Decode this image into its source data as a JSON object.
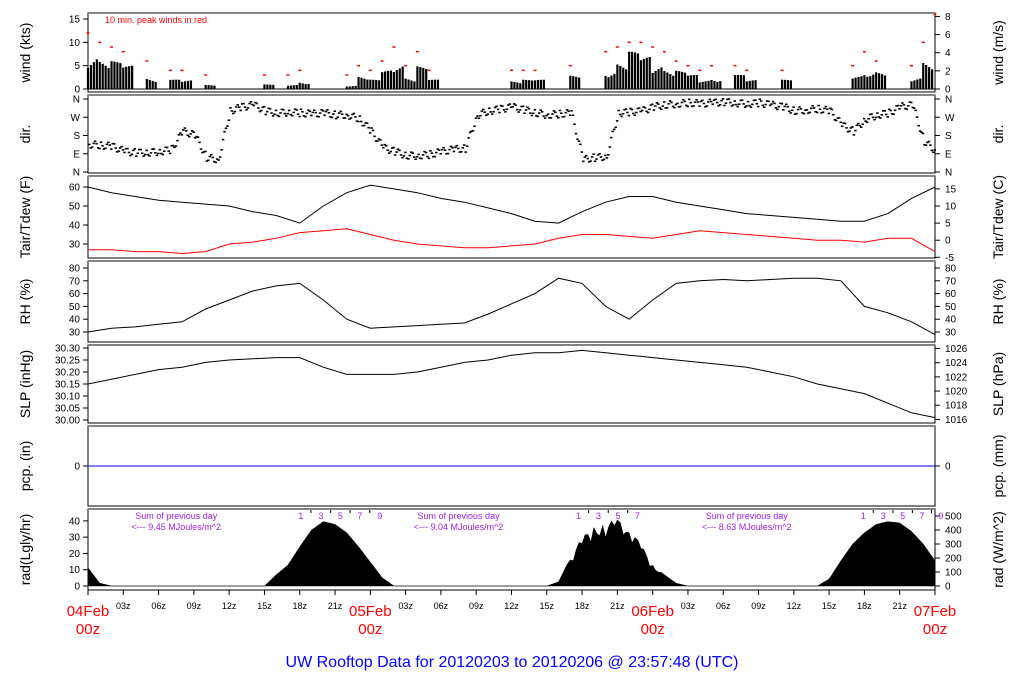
{
  "title": "UW Rooftop Data for 20120203  to  20120206 @ 23:57:48  (UTC)",
  "colors": {
    "axis": "#000000",
    "dew": "#ff0000",
    "peak": "#ff0000",
    "pcp": "#0000ff",
    "annot": "#a020f0",
    "title": "#0000ff",
    "date": "#ff0000"
  },
  "chart_data": [
    {
      "type": "bar",
      "id": "wind",
      "ylabel": "wind (kts)",
      "ylabel_right": "wind (m/s)",
      "annotation": "10 min. peak winds in red",
      "ylim": [
        0,
        15
      ],
      "yticks": [
        0,
        5,
        10,
        15
      ],
      "yticks_right": [
        0,
        2,
        4,
        6,
        8
      ],
      "x_hours_step": 1,
      "values": [
        9,
        7,
        6,
        5,
        0,
        3,
        0,
        2,
        2,
        0,
        1,
        0,
        0,
        0,
        0,
        1,
        0,
        1,
        2,
        0,
        0,
        0,
        1,
        3,
        2,
        4,
        6,
        3,
        5,
        2,
        0,
        0,
        0,
        0,
        0,
        0,
        2,
        2,
        2,
        0,
        0,
        3,
        0,
        0,
        5,
        6,
        8,
        7,
        6,
        5,
        4,
        3,
        2,
        3,
        0,
        3,
        2,
        0,
        0,
        2,
        0,
        0,
        0,
        0,
        0,
        3,
        5,
        4,
        0,
        0,
        3,
        7,
        9
      ],
      "peaks": [
        12,
        10,
        9,
        8,
        0,
        6,
        0,
        4,
        4,
        0,
        3,
        0,
        0,
        0,
        0,
        3,
        0,
        3,
        4,
        0,
        0,
        0,
        3,
        5,
        4,
        6,
        9,
        5,
        8,
        4,
        0,
        0,
        0,
        0,
        0,
        0,
        4,
        4,
        4,
        0,
        0,
        5,
        0,
        0,
        8,
        9,
        10,
        10,
        9,
        8,
        6,
        5,
        4,
        5,
        0,
        5,
        4,
        0,
        0,
        4,
        0,
        0,
        0,
        0,
        0,
        5,
        8,
        6,
        0,
        0,
        5,
        10,
        16
      ]
    },
    {
      "type": "scatter",
      "id": "dir",
      "ylabel": "dir.",
      "ylabel_right": "dir.",
      "ylim": [
        0,
        360
      ],
      "ytick_labels": [
        "N",
        "E",
        "S",
        "W",
        "N"
      ],
      "yticks": [
        0,
        90,
        180,
        270,
        360
      ],
      "x_hours_step": 1,
      "values": [
        135,
        130,
        125,
        100,
        95,
        95,
        100,
        110,
        200,
        180,
        70,
        60,
        300,
        320,
        330,
        300,
        290,
        295,
        290,
        285,
        290,
        280,
        280,
        260,
        200,
        120,
        100,
        80,
        80,
        85,
        100,
        110,
        115,
        280,
        300,
        310,
        320,
        305,
        290,
        280,
        285,
        290,
        60,
        70,
        75,
        290,
        295,
        300,
        320,
        330,
        335,
        340,
        335,
        340,
        345,
        340,
        335,
        340,
        330,
        320,
        300,
        305,
        310,
        300,
        230,
        200,
        260,
        280,
        290,
        320,
        330,
        150,
        100
      ]
    },
    {
      "type": "line",
      "id": "temp",
      "ylabel": "Tair/Tdew (F)",
      "ylabel_right": "Tair/Tdew (C)",
      "ylim": [
        24,
        63
      ],
      "yticks": [
        30,
        40,
        50,
        60
      ],
      "yticks_right": [
        -5,
        0,
        5,
        10,
        15
      ],
      "x_hours_step": 2,
      "series": [
        {
          "name": "Tair",
          "values": [
            60,
            57,
            55,
            53,
            52,
            51,
            50,
            47,
            45,
            41,
            50,
            57,
            61,
            59,
            57,
            54,
            52,
            49,
            46,
            42,
            41,
            47,
            52,
            55,
            55,
            52,
            50,
            48,
            46,
            45,
            44,
            43,
            42,
            42,
            46,
            54,
            60
          ]
        },
        {
          "name": "Tdew",
          "values": [
            27,
            27,
            26,
            26,
            25,
            26,
            30,
            31,
            33,
            36,
            37,
            38,
            35,
            32,
            30,
            29,
            28,
            28,
            29,
            30,
            33,
            35,
            35,
            34,
            33,
            35,
            37,
            36,
            35,
            34,
            33,
            32,
            32,
            31,
            33,
            33,
            26
          ]
        }
      ]
    },
    {
      "type": "line",
      "id": "rh",
      "ylabel": "RH (%)",
      "ylabel_right": "RH (%)",
      "ylim": [
        25,
        82
      ],
      "yticks": [
        30,
        40,
        50,
        60,
        70,
        80
      ],
      "yticks_right": [
        30,
        40,
        50,
        60,
        70,
        80
      ],
      "x_hours_step": 2,
      "values": [
        30,
        33,
        34,
        36,
        38,
        48,
        55,
        62,
        66,
        68,
        55,
        40,
        33,
        34,
        35,
        36,
        37,
        44,
        52,
        60,
        72,
        68,
        50,
        40,
        55,
        68,
        70,
        71,
        70,
        71,
        72,
        72,
        70,
        50,
        45,
        38,
        28
      ]
    },
    {
      "type": "line",
      "id": "slp",
      "ylabel": "SLP (inHg)",
      "ylabel_right": "SLP (hPa)",
      "ylim": [
        29.99,
        30.31
      ],
      "yticks": [
        30.0,
        30.05,
        30.1,
        30.15,
        30.2,
        30.25,
        30.3
      ],
      "yticks_right": [
        1016,
        1018,
        1020,
        1022,
        1024,
        1026
      ],
      "x_hours_step": 2,
      "values": [
        30.15,
        30.17,
        30.19,
        30.21,
        30.22,
        30.24,
        30.25,
        30.255,
        30.26,
        30.26,
        30.22,
        30.19,
        30.19,
        30.19,
        30.2,
        30.22,
        30.24,
        30.25,
        30.27,
        30.28,
        30.28,
        30.29,
        30.28,
        30.27,
        30.26,
        30.25,
        30.24,
        30.23,
        30.22,
        30.2,
        30.18,
        30.15,
        30.13,
        30.11,
        30.07,
        30.03,
        30.01
      ]
    },
    {
      "type": "line",
      "id": "pcp",
      "ylabel": "pcp. (in)",
      "ylabel_right": "pcp. (mm)",
      "ylim": [
        -1,
        1
      ],
      "yticks": [
        0
      ],
      "yticks_right": [
        0
      ],
      "x_hours_step": 72,
      "values": [
        0,
        0
      ]
    },
    {
      "type": "area",
      "id": "rad",
      "ylabel": "rad(Lgly/hr)",
      "ylabel_right": "rad (W/m^2)",
      "ylim": [
        0,
        540
      ],
      "yticks_lgly": [
        0,
        10,
        20,
        30,
        40
      ],
      "yticks_right": [
        0,
        100,
        200,
        300,
        400,
        500
      ],
      "x_hours_step": 1,
      "values": [
        130,
        20,
        0,
        0,
        0,
        0,
        0,
        0,
        0,
        0,
        0,
        0,
        0,
        0,
        0,
        0,
        80,
        150,
        280,
        400,
        460,
        440,
        380,
        280,
        170,
        60,
        0,
        0,
        0,
        0,
        0,
        0,
        0,
        0,
        0,
        0,
        0,
        0,
        0,
        0,
        30,
        200,
        350,
        420,
        450,
        480,
        420,
        300,
        150,
        80,
        20,
        0,
        0,
        0,
        0,
        0,
        0,
        0,
        0,
        0,
        0,
        0,
        0,
        50,
        180,
        300,
        380,
        440,
        460,
        450,
        390,
        300,
        180
      ],
      "daily_sums": [
        {
          "line1": "Sum of previous day",
          "line2": "<--- 9.45 MJoules/m^2",
          "at_hour": 7.5
        },
        {
          "line1": "Sum of previous day",
          "line2": "<--- 9.04 MJoules/m^2",
          "at_hour": 31.5
        },
        {
          "line1": "Sum of previous day",
          "line2": "<--- 8.63 MJoules/m^2",
          "at_hour": 56
        }
      ],
      "hour_marks": [
        {
          "labels": [
            "1",
            "3",
            "5",
            "7",
            "9"
          ],
          "hours": [
            18.1,
            19.8,
            21.45,
            23.1,
            24.8
          ]
        },
        {
          "labels": [
            "1",
            "3",
            "5",
            "7"
          ],
          "hours": [
            41.7,
            43.4,
            45.05,
            46.7
          ]
        },
        {
          "labels": [
            "1",
            "3",
            "5",
            "7",
            "9"
          ],
          "hours": [
            65.9,
            67.6,
            69.25,
            70.9,
            72.5
          ]
        }
      ]
    }
  ],
  "xaxis": {
    "range_hours": [
      0,
      72
    ],
    "hour_labels": [
      "03z",
      "06z",
      "09z",
      "12z",
      "15z",
      "18z",
      "21z"
    ],
    "days": [
      {
        "date": "04Feb",
        "time": "00z",
        "hour": 0
      },
      {
        "date": "05Feb",
        "time": "00z",
        "hour": 24
      },
      {
        "date": "06Feb",
        "time": "00z",
        "hour": 48
      },
      {
        "date": "07Feb",
        "time": "00z",
        "hour": 72
      }
    ]
  }
}
